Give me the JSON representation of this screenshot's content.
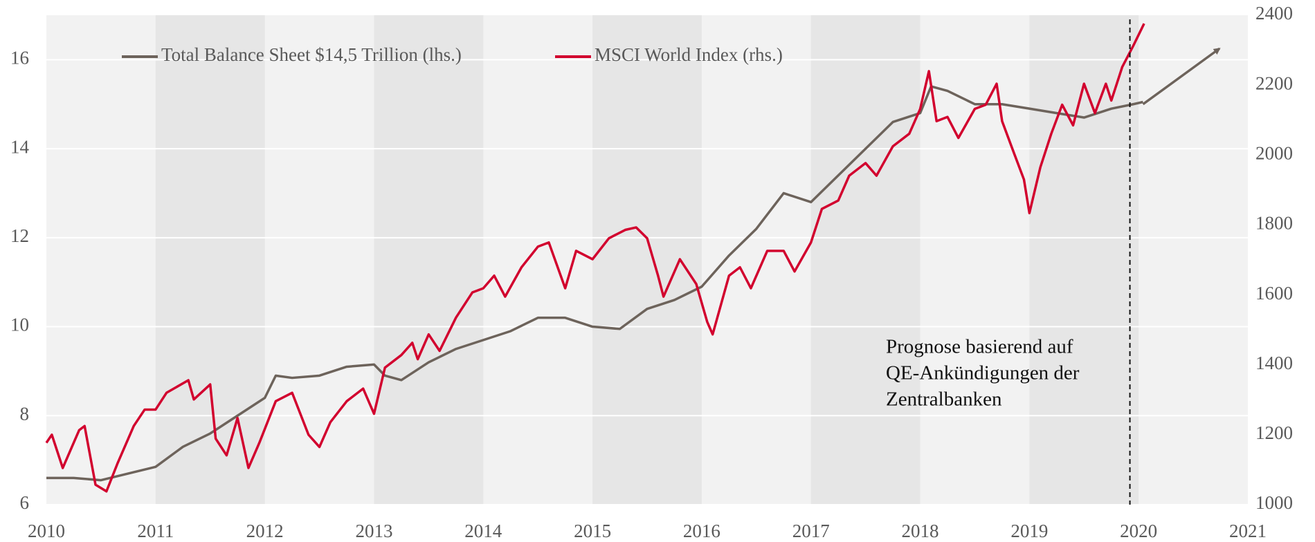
{
  "chart_data": {
    "type": "line",
    "xlim": [
      2010,
      2021
    ],
    "xticks": [
      2010,
      2011,
      2012,
      2013,
      2014,
      2015,
      2016,
      2017,
      2018,
      2019,
      2020,
      2021
    ],
    "ylim": [
      6,
      17
    ],
    "yticks": [
      6,
      8,
      10,
      12,
      14,
      16
    ],
    "y2lim": [
      1000,
      2400
    ],
    "y2ticks": [
      1000,
      1200,
      1400,
      1600,
      1800,
      2000,
      2200,
      2400
    ],
    "grid": true,
    "legend": "top-left",
    "series": [
      {
        "name": "Total Balance Sheet $14,5 Trillion (lhs.)",
        "color": "#6d635b",
        "x": [
          2010.0,
          2010.25,
          2010.5,
          2010.75,
          2011.0,
          2011.25,
          2011.5,
          2011.75,
          2012.0,
          2012.1,
          2012.25,
          2012.5,
          2012.75,
          2013.0,
          2013.1,
          2013.25,
          2013.5,
          2013.75,
          2014.0,
          2014.25,
          2014.5,
          2014.75,
          2015.0,
          2015.25,
          2015.5,
          2015.75,
          2016.0,
          2016.25,
          2016.5,
          2016.75,
          2017.0,
          2017.25,
          2017.5,
          2017.75,
          2018.0,
          2018.1,
          2018.25,
          2018.5,
          2018.75,
          2019.0,
          2019.25,
          2019.5,
          2019.75,
          2019.95,
          2020.04
        ],
        "values": [
          6.6,
          6.6,
          6.55,
          6.7,
          6.85,
          7.3,
          7.6,
          8.0,
          8.4,
          8.9,
          8.85,
          8.9,
          9.1,
          9.15,
          8.9,
          8.8,
          9.2,
          9.5,
          9.7,
          9.9,
          10.2,
          10.2,
          10.0,
          9.95,
          10.4,
          10.6,
          10.9,
          11.6,
          12.2,
          13.0,
          12.8,
          13.4,
          14.0,
          14.6,
          14.8,
          15.4,
          15.3,
          15.0,
          15.0,
          14.9,
          14.8,
          14.7,
          14.9,
          15.0,
          15.05
        ]
      },
      {
        "name": "MSCI World Index (rhs.)",
        "color": "#d2002e",
        "axis": "y2",
        "x": [
          2010.0,
          2010.05,
          2010.15,
          2010.3,
          2010.35,
          2010.45,
          2010.55,
          2010.65,
          2010.8,
          2010.9,
          2011.0,
          2011.1,
          2011.3,
          2011.35,
          2011.5,
          2011.55,
          2011.65,
          2011.75,
          2011.85,
          2011.95,
          2012.1,
          2012.25,
          2012.4,
          2012.5,
          2012.6,
          2012.75,
          2012.9,
          2013.0,
          2013.1,
          2013.25,
          2013.35,
          2013.4,
          2013.5,
          2013.6,
          2013.75,
          2013.9,
          2014.0,
          2014.1,
          2014.2,
          2014.35,
          2014.5,
          2014.6,
          2014.75,
          2014.85,
          2015.0,
          2015.15,
          2015.3,
          2015.4,
          2015.5,
          2015.6,
          2015.65,
          2015.8,
          2015.95,
          2016.05,
          2016.1,
          2016.25,
          2016.35,
          2016.45,
          2016.6,
          2016.75,
          2016.85,
          2017.0,
          2017.1,
          2017.25,
          2017.35,
          2017.5,
          2017.6,
          2017.75,
          2017.9,
          2018.0,
          2018.08,
          2018.15,
          2018.25,
          2018.35,
          2018.5,
          2018.6,
          2018.7,
          2018.75,
          2018.85,
          2018.95,
          2019.0,
          2019.1,
          2019.2,
          2019.3,
          2019.4,
          2019.5,
          2019.6,
          2019.7,
          2019.75,
          2019.85,
          2019.95,
          2020.05
        ],
        "values": [
          1177,
          1200,
          1105,
          1213,
          1225,
          1057,
          1038,
          1117,
          1225,
          1272,
          1272,
          1320,
          1356,
          1301,
          1344,
          1189,
          1141,
          1248,
          1105,
          1177,
          1296,
          1320,
          1200,
          1165,
          1236,
          1296,
          1332,
          1260,
          1392,
          1428,
          1463,
          1416,
          1487,
          1440,
          1535,
          1607,
          1619,
          1655,
          1595,
          1679,
          1738,
          1750,
          1619,
          1726,
          1702,
          1762,
          1786,
          1793,
          1762,
          1655,
          1595,
          1702,
          1631,
          1523,
          1487,
          1655,
          1679,
          1619,
          1726,
          1726,
          1667,
          1750,
          1846,
          1870,
          1941,
          1977,
          1941,
          2025,
          2061,
          2132,
          2240,
          2097,
          2109,
          2049,
          2132,
          2144,
          2204,
          2097,
          2013,
          1930,
          1834,
          1965,
          2061,
          2144,
          2085,
          2204,
          2120,
          2204,
          2156,
          2252,
          2312,
          2376
        ]
      }
    ],
    "vline": 2019.92,
    "arrow": {
      "x": [
        2020.04,
        2020.74
      ],
      "y": [
        15.0,
        16.25
      ]
    },
    "annotation": [
      "Prognose basierend auf",
      "QE-Ankündigungen der",
      "Zentralbanken"
    ]
  }
}
